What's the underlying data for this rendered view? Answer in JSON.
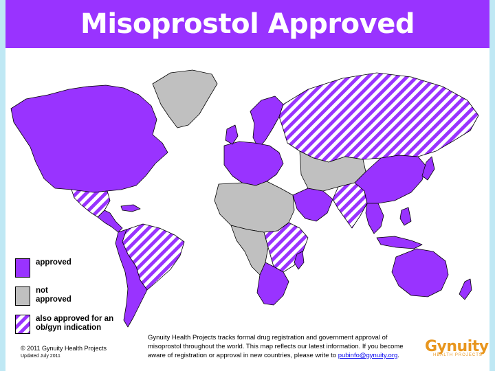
{
  "title": "Misoprostol Approved",
  "legend": {
    "approved": "approved",
    "not_approved": "not approved",
    "also_approved": "also approved for an ob/gyn indication"
  },
  "colors": {
    "approved": "#9933ff",
    "not_approved": "#c0c0c0",
    "stripe": "#9933ff",
    "title_bar": "#9933ff",
    "frame": "#bfe8f4",
    "logo": "#e8961e"
  },
  "footer": {
    "copyright": "© 2011 Gynuity Health Projects",
    "updated": "Updated July 2011",
    "note": "Gynuity Health Projects tracks formal drug registration and government approval of misoprostol throughout the world. This map reflects our latest information. If you become aware of registration or approval in new countries, please write to",
    "email": "pubinfo@gynuity.org",
    "note_end": "."
  },
  "logo": {
    "name": "Gynuity",
    "tagline": "HEALTH PROJECTS"
  },
  "regions": [
    {
      "name": "North America",
      "status": "approved"
    },
    {
      "name": "Greenland",
      "status": "not_approved"
    },
    {
      "name": "Mexico",
      "status": "ob_gyn"
    },
    {
      "name": "Central America",
      "status": "approved"
    },
    {
      "name": "Brazil",
      "status": "ob_gyn"
    },
    {
      "name": "South America west",
      "status": "approved"
    },
    {
      "name": "Scandinavia",
      "status": "approved"
    },
    {
      "name": "Western Europe",
      "status": "approved"
    },
    {
      "name": "Russia",
      "status": "ob_gyn"
    },
    {
      "name": "North Africa",
      "status": "not_approved"
    },
    {
      "name": "East Africa",
      "status": "ob_gyn"
    },
    {
      "name": "Southern Africa",
      "status": "approved"
    },
    {
      "name": "Middle East",
      "status": "approved"
    },
    {
      "name": "Central Asia",
      "status": "not_approved"
    },
    {
      "name": "India",
      "status": "ob_gyn"
    },
    {
      "name": "China",
      "status": "approved"
    },
    {
      "name": "Southeast Asia",
      "status": "approved"
    },
    {
      "name": "Australia",
      "status": "approved"
    },
    {
      "name": "New Zealand",
      "status": "approved"
    }
  ]
}
